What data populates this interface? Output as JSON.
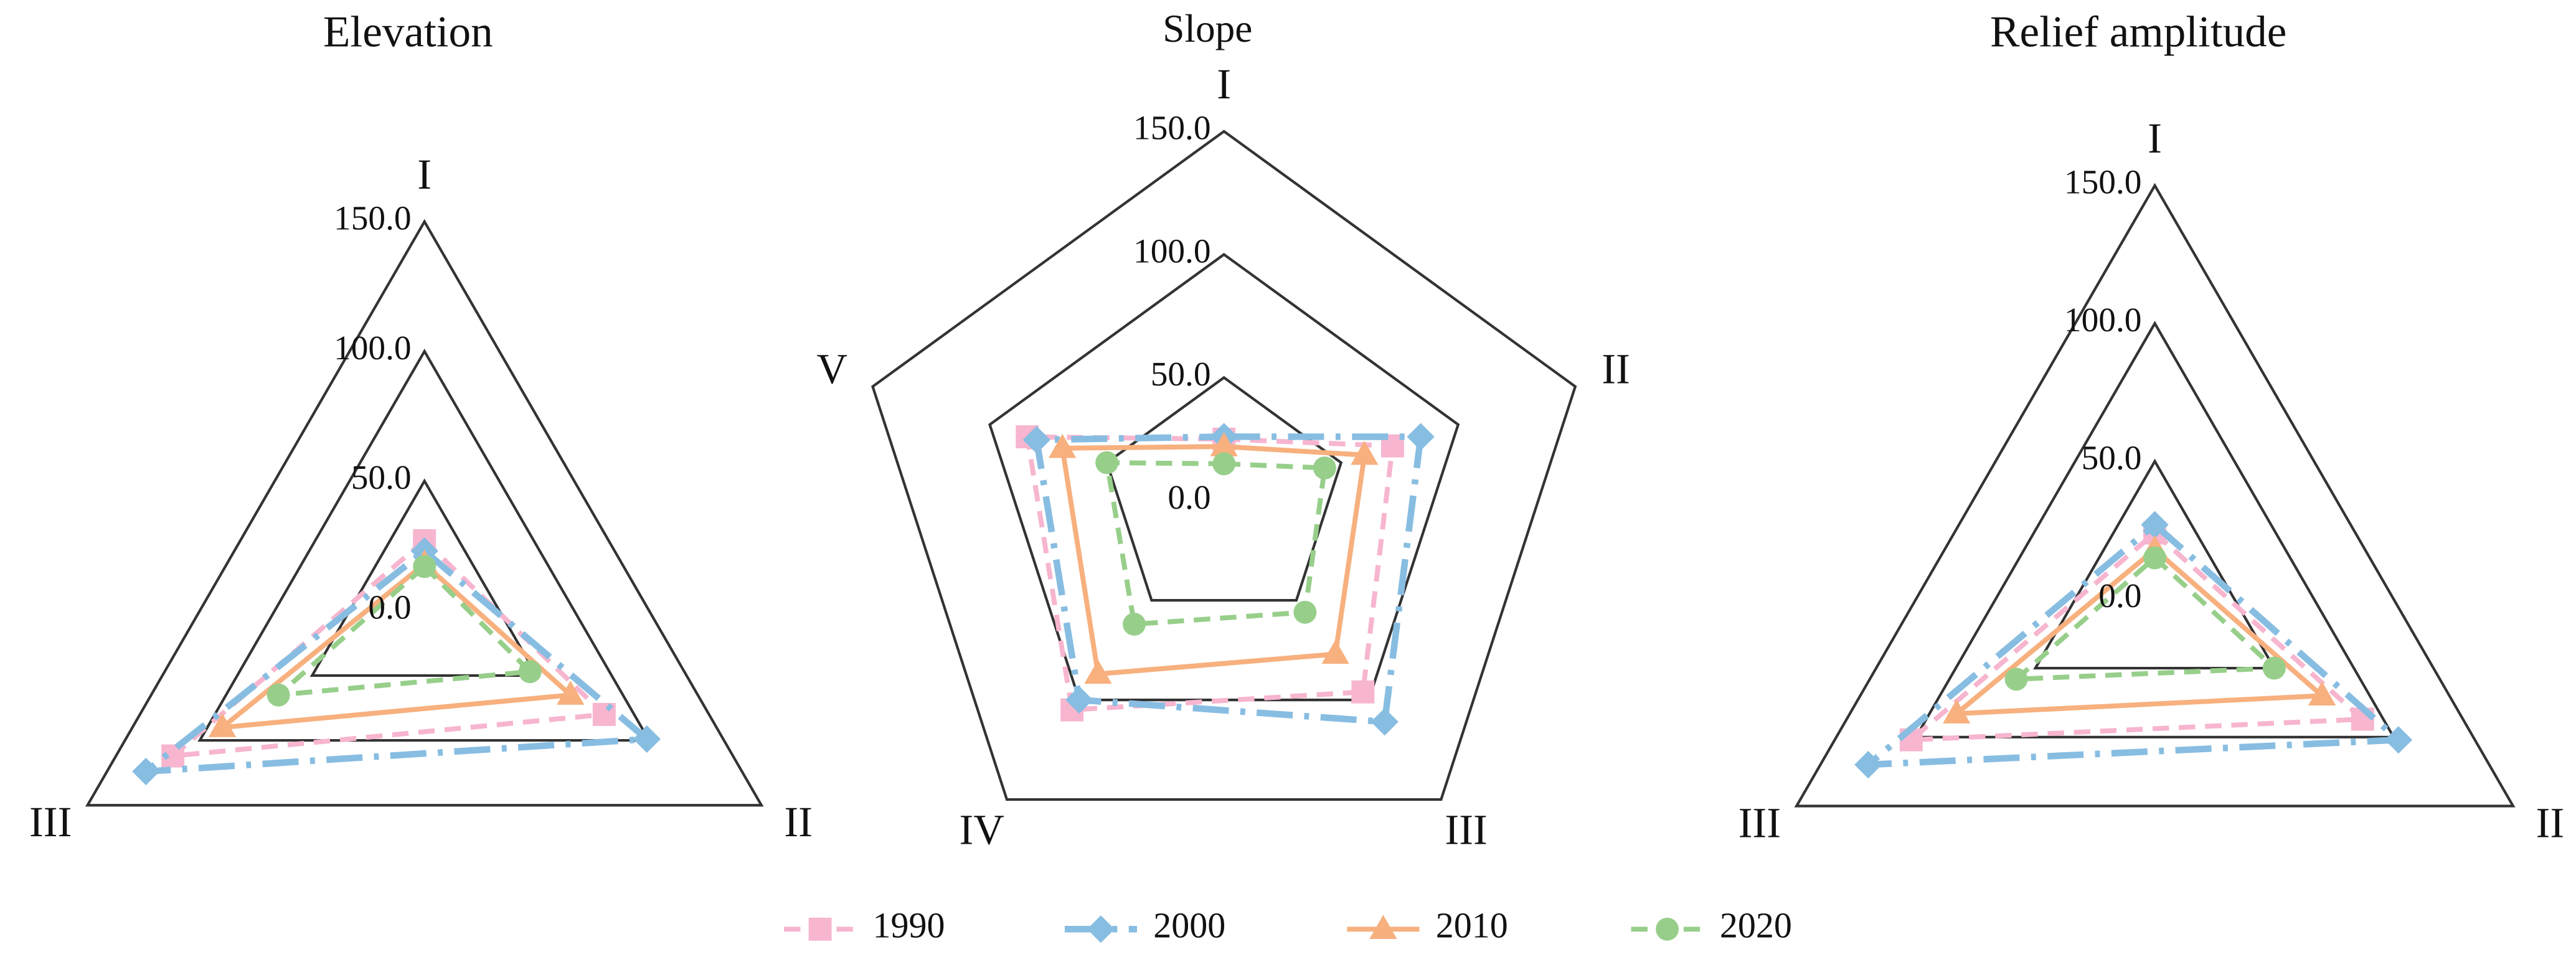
{
  "chart_data": [
    {
      "type": "radar",
      "title": "Elevation",
      "categories": [
        "I",
        "II",
        "III"
      ],
      "rlim": [
        0,
        150
      ],
      "rticks": [
        {
          "value": 0,
          "label": "0.0"
        },
        {
          "value": 50,
          "label": "50.0"
        },
        {
          "value": 100,
          "label": "100.0"
        },
        {
          "value": 150,
          "label": "150.0"
        }
      ],
      "series": [
        {
          "name": "1990",
          "color": "#f7b5cf",
          "marker": "square",
          "dash": "dashed",
          "values": [
            27,
            80,
            112
          ]
        },
        {
          "name": "2000",
          "color": "#88bde2",
          "marker": "diamond",
          "dash": "dashdot",
          "values": [
            23,
            99,
            124
          ]
        },
        {
          "name": "2010",
          "color": "#f7b07e",
          "marker": "triangle",
          "dash": "solid",
          "values": [
            18,
            65,
            90
          ]
        },
        {
          "name": "2020",
          "color": "#97cf8a",
          "marker": "circle",
          "dash": "dashed",
          "values": [
            17,
            47,
            65
          ]
        }
      ]
    },
    {
      "type": "radar",
      "title": "Slope",
      "categories": [
        "I",
        "II",
        "III",
        "IV",
        "V"
      ],
      "rlim": [
        0,
        150
      ],
      "rticks": [
        {
          "value": 0,
          "label": "0.0"
        },
        {
          "value": 50,
          "label": "50.0"
        },
        {
          "value": 100,
          "label": "100.0"
        },
        {
          "value": 150,
          "label": "150.0"
        }
      ],
      "series": [
        {
          "color": "#f7b5cf",
          "marker": "square",
          "dash": "dashed",
          "values": [
            25,
            72,
            96,
            105,
            84
          ]
        },
        {
          "color": "#88bde2",
          "marker": "diamond",
          "dash": "dashdot",
          "values": [
            26,
            84,
            111,
            100,
            80
          ]
        },
        {
          "color": "#f7b07e",
          "marker": "triangle",
          "dash": "solid",
          "values": [
            22,
            60,
            77,
            87,
            69
          ]
        },
        {
          "color": "#97cf8a",
          "marker": "circle",
          "dash": "dashed",
          "values": [
            15,
            43,
            56,
            62,
            50
          ]
        }
      ]
    },
    {
      "type": "radar",
      "title": "Relief amplitude",
      "categories": [
        "I",
        "II",
        "III"
      ],
      "rlim": [
        0,
        150
      ],
      "rticks": [
        {
          "value": 0,
          "label": "0.0"
        },
        {
          "value": 50,
          "label": "50.0"
        },
        {
          "value": 100,
          "label": "100.0"
        },
        {
          "value": 150,
          "label": "150.0"
        }
      ],
      "series": [
        {
          "color": "#f7b5cf",
          "marker": "square",
          "dash": "dashed",
          "values": [
            24,
            87,
            102
          ]
        },
        {
          "color": "#88bde2",
          "marker": "diamond",
          "dash": "dashdot",
          "values": [
            27,
            102,
            120
          ]
        },
        {
          "color": "#f7b07e",
          "marker": "triangle",
          "dash": "solid",
          "values": [
            18,
            70,
            83
          ]
        },
        {
          "color": "#97cf8a",
          "marker": "circle",
          "dash": "dashed",
          "values": [
            15,
            50,
            58
          ]
        }
      ]
    }
  ]
}
